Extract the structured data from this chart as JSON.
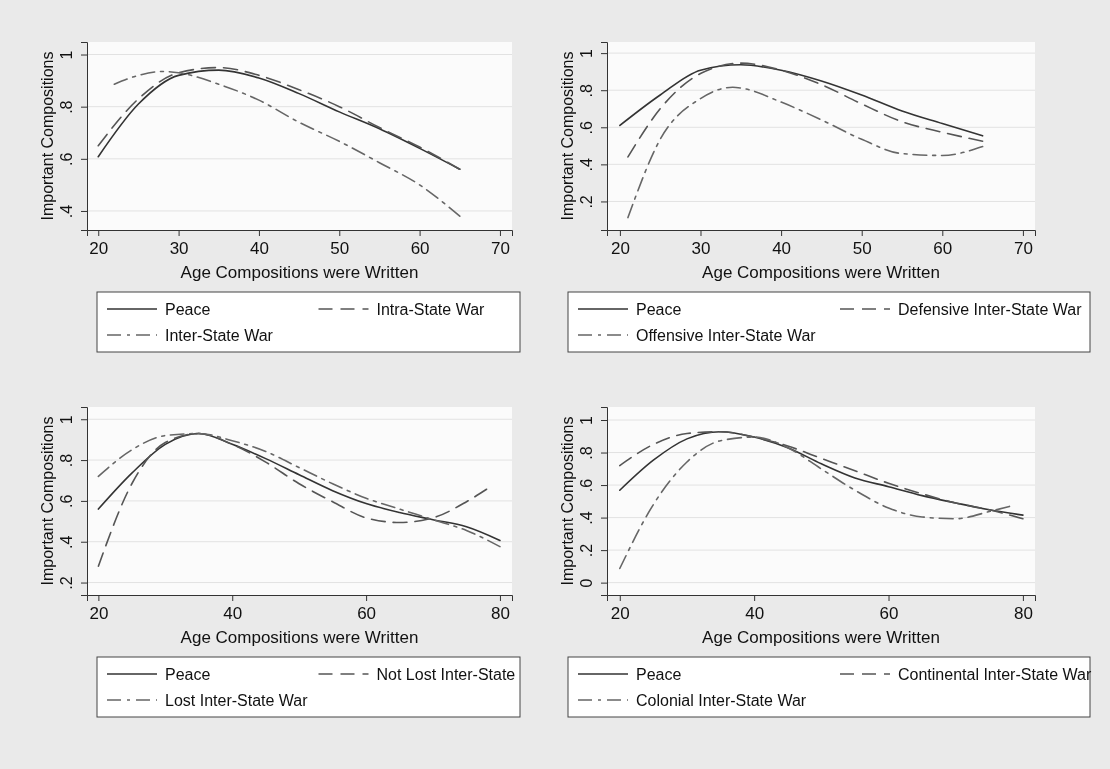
{
  "chart_data": [
    {
      "type": "line",
      "xlabel": "Age Compositions were Written",
      "ylabel": "Important Compositions",
      "xlim": [
        18.6,
        71.5
      ],
      "xticks": [
        20,
        30,
        40,
        50,
        60,
        70
      ],
      "ylim": [
        0.327,
        1.048
      ],
      "yticks": [
        {
          "value": 0.4,
          "label": ".4"
        },
        {
          "value": 0.6,
          "label": ".6"
        },
        {
          "value": 0.8,
          "label": ".8"
        },
        {
          "value": 1,
          "label": "1"
        }
      ],
      "grid": "y",
      "legend": "bottom",
      "series": [
        {
          "name": "Peace",
          "color": "#333333",
          "line_style": "solid",
          "x": [
            20,
            25,
            30,
            35,
            40,
            45,
            50,
            55,
            60,
            65
          ],
          "values": [
            0.608,
            0.81,
            0.92,
            0.94,
            0.91,
            0.85,
            0.78,
            0.715,
            0.64,
            0.56
          ]
        },
        {
          "name": "Intra-State War",
          "color": "#555555",
          "line_style": "dashed",
          "x": [
            20,
            25,
            30,
            35,
            40,
            45,
            50,
            55,
            60,
            65
          ],
          "values": [
            0.65,
            0.83,
            0.93,
            0.95,
            0.92,
            0.865,
            0.8,
            0.72,
            0.645,
            0.56
          ]
        },
        {
          "name": "Inter-State War",
          "color": "#666666",
          "line_style": "dashdot",
          "x": [
            22,
            25,
            28,
            30,
            35,
            40,
            45,
            50,
            55,
            60,
            65
          ],
          "values": [
            0.886,
            0.92,
            0.935,
            0.93,
            0.886,
            0.825,
            0.74,
            0.667,
            0.585,
            0.5,
            0.38
          ]
        }
      ]
    },
    {
      "type": "line",
      "xlabel": "Age Compositions were Written",
      "ylabel": "Important Compositions",
      "xlim": [
        18.4,
        71.5
      ],
      "xticks": [
        20,
        30,
        40,
        50,
        60,
        70
      ],
      "ylim": [
        0.046,
        1.06
      ],
      "yticks": [
        {
          "value": 0.2,
          "label": ".2"
        },
        {
          "value": 0.4,
          "label": ".4"
        },
        {
          "value": 0.6,
          "label": ".6"
        },
        {
          "value": 0.8,
          "label": ".8"
        },
        {
          "value": 1,
          "label": "1"
        }
      ],
      "grid": "y",
      "legend": "bottom",
      "series": [
        {
          "name": "Peace",
          "color": "#333333",
          "line_style": "solid",
          "x": [
            20,
            25,
            30,
            35,
            40,
            45,
            50,
            55,
            60,
            65
          ],
          "values": [
            0.61,
            0.774,
            0.908,
            0.937,
            0.908,
            0.85,
            0.774,
            0.688,
            0.62,
            0.554
          ]
        },
        {
          "name": "Defensive Inter-State War",
          "color": "#555555",
          "line_style": "dashed",
          "x": [
            21,
            25,
            30,
            35,
            40,
            45,
            50,
            55,
            60,
            65
          ],
          "values": [
            0.44,
            0.7,
            0.89,
            0.946,
            0.908,
            0.83,
            0.726,
            0.63,
            0.573,
            0.525
          ]
        },
        {
          "name": "Offensive Inter-State War",
          "color": "#666666",
          "line_style": "dashdot",
          "x": [
            21,
            25,
            30,
            34,
            35,
            40,
            45,
            50,
            55,
            60,
            65
          ],
          "values": [
            0.113,
            0.535,
            0.755,
            0.816,
            0.812,
            0.736,
            0.64,
            0.535,
            0.458,
            0.448,
            0.496
          ]
        }
      ]
    },
    {
      "type": "line",
      "xlabel": "Age Compositions were Written",
      "ylabel": "Important Compositions",
      "xlim": [
        18.3,
        81.8
      ],
      "xticks": [
        20,
        40,
        60,
        80
      ],
      "ylim": [
        0.139,
        1.06
      ],
      "yticks": [
        {
          "value": 0.2,
          "label": ".2"
        },
        {
          "value": 0.4,
          "label": ".4"
        },
        {
          "value": 0.6,
          "label": ".6"
        },
        {
          "value": 0.8,
          "label": ".8"
        },
        {
          "value": 1,
          "label": "1"
        }
      ],
      "grid": "y",
      "legend": "bottom",
      "series": [
        {
          "name": "Peace",
          "color": "#333333",
          "line_style": "solid",
          "x": [
            20,
            25,
            30,
            35,
            40,
            45,
            50,
            55,
            60,
            65,
            70,
            75,
            80
          ],
          "values": [
            0.56,
            0.736,
            0.877,
            0.93,
            0.877,
            0.807,
            0.728,
            0.65,
            0.587,
            0.543,
            0.508,
            0.473,
            0.406
          ]
        },
        {
          "name": "Not Lost Inter-State",
          "color": "#555555",
          "line_style": "dashed",
          "x": [
            20,
            25,
            30,
            35,
            40,
            45,
            50,
            55,
            60,
            65,
            70,
            75,
            78
          ],
          "values": [
            0.28,
            0.684,
            0.886,
            0.93,
            0.877,
            0.79,
            0.684,
            0.596,
            0.517,
            0.494,
            0.517,
            0.596,
            0.657
          ]
        },
        {
          "name": "Lost Inter-State War",
          "color": "#666666",
          "line_style": "dashdot",
          "x": [
            20,
            25,
            30,
            35,
            40,
            45,
            50,
            55,
            60,
            65,
            70,
            75,
            80
          ],
          "values": [
            0.72,
            0.85,
            0.92,
            0.93,
            0.895,
            0.842,
            0.763,
            0.684,
            0.613,
            0.56,
            0.508,
            0.455,
            0.376
          ]
        }
      ]
    },
    {
      "type": "line",
      "xlabel": "Age Compositions were Written",
      "ylabel": "Important Compositions",
      "xlim": [
        18.1,
        81.8
      ],
      "xticks": [
        20,
        40,
        60,
        80
      ],
      "ylim": [
        -0.076,
        1.08
      ],
      "yticks": [
        {
          "value": 0,
          "label": "0"
        },
        {
          "value": 0.2,
          "label": ".2"
        },
        {
          "value": 0.4,
          "label": ".4"
        },
        {
          "value": 0.6,
          "label": ".6"
        },
        {
          "value": 0.8,
          "label": ".8"
        },
        {
          "value": 1,
          "label": "1"
        }
      ],
      "grid": "y",
      "legend": "bottom",
      "series": [
        {
          "name": "Peace",
          "color": "#333333",
          "line_style": "solid",
          "x": [
            20,
            25,
            30,
            35,
            40,
            45,
            50,
            55,
            60,
            65,
            70,
            75,
            80
          ],
          "values": [
            0.568,
            0.753,
            0.884,
            0.928,
            0.895,
            0.83,
            0.731,
            0.644,
            0.59,
            0.535,
            0.49,
            0.448,
            0.415
          ]
        },
        {
          "name": "Continental Inter-State War",
          "color": "#555555",
          "line_style": "dashed",
          "x": [
            20,
            25,
            30,
            35,
            40,
            45,
            50,
            55,
            60,
            65,
            70,
            75,
            80
          ],
          "values": [
            0.72,
            0.85,
            0.917,
            0.928,
            0.895,
            0.84,
            0.764,
            0.688,
            0.611,
            0.546,
            0.49,
            0.448,
            0.393
          ]
        },
        {
          "name": "Colonial Inter-State War",
          "color": "#666666",
          "line_style": "dashdot",
          "x": [
            20,
            25,
            30,
            35,
            40,
            45,
            50,
            55,
            60,
            65,
            70,
            75,
            78
          ],
          "values": [
            0.087,
            0.48,
            0.742,
            0.873,
            0.895,
            0.83,
            0.699,
            0.568,
            0.459,
            0.404,
            0.393,
            0.437,
            0.469
          ]
        }
      ]
    }
  ]
}
